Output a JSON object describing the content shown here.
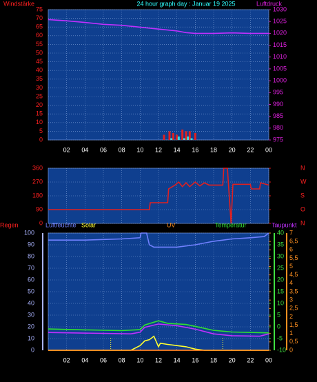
{
  "chart_data": [
    {
      "type": "line",
      "title": "24 hour graph day : Januar 19 2025",
      "ylabel": "Windstärke",
      "y2label": "Luftdruck",
      "xlim": [
        0,
        24
      ],
      "xticks": [
        {
          "value": 2,
          "label": "02"
        },
        {
          "value": 4,
          "label": "04"
        },
        {
          "value": 6,
          "label": "06"
        },
        {
          "value": 8,
          "label": "08"
        },
        10,
        12,
        14,
        16,
        18,
        20,
        22,
        {
          "value": 24,
          "label": "00"
        }
      ],
      "show_xlabels": true,
      "ylim": [
        0,
        75
      ],
      "yticks": [
        0,
        5,
        10,
        15,
        20,
        25,
        30,
        35,
        40,
        45,
        50,
        55,
        60,
        65,
        70,
        75
      ],
      "ycolor": "#ff2020",
      "y2lim": [
        975,
        1030
      ],
      "y2ticks": [
        975,
        980,
        985,
        990,
        995,
        1000,
        1005,
        1010,
        1015,
        1020,
        1025,
        1030
      ],
      "y2color": "#e020e0",
      "grid": true,
      "series": [
        {
          "type": "bar",
          "color": "#e02020",
          "x": [
            12.6,
            13.2,
            13.6,
            14.0,
            14.6,
            15.0,
            15.4,
            16.0
          ],
          "values": [
            3,
            5,
            4,
            3,
            6,
            5,
            5,
            4
          ]
        },
        {
          "type": "bar",
          "color": "#30e0e0",
          "x": [
            13.4,
            14.2,
            14.8,
            15.2,
            15.6
          ],
          "values": [
            1,
            2,
            1,
            2,
            1
          ]
        },
        {
          "type": "line",
          "axis": "y2",
          "color": "#c030ff",
          "x": [
            0,
            2,
            4,
            6,
            8,
            10,
            12,
            14,
            15,
            16,
            18,
            20,
            22,
            24
          ],
          "values": [
            1025.8,
            1025.3,
            1024.6,
            1023.8,
            1023.4,
            1022.6,
            1021.8,
            1021,
            1020.3,
            1020,
            1020,
            1020.2,
            1020,
            1020
          ]
        }
      ]
    },
    {
      "type": "line",
      "xlim": [
        0,
        24
      ],
      "xticks": [
        {
          "value": 2,
          "label": "02"
        },
        {
          "value": 4,
          "label": "04"
        },
        {
          "value": 6,
          "label": "06"
        },
        {
          "value": 8,
          "label": "08"
        },
        10,
        12,
        14,
        16,
        18,
        20,
        22,
        {
          "value": 24,
          "label": "00"
        }
      ],
      "show_xlabels": false,
      "ylim": [
        0,
        360
      ],
      "yticks": [
        0,
        90,
        180,
        270,
        360
      ],
      "ycolor": "#ff2020",
      "y2lim": [
        0,
        360
      ],
      "y2ticks": [
        {
          "value": 0,
          "label": "N"
        },
        {
          "value": 90,
          "label": "O"
        },
        {
          "value": 180,
          "label": "S"
        },
        {
          "value": 270,
          "label": "W"
        },
        {
          "value": 360,
          "label": "N"
        }
      ],
      "y2color": "#ff2020",
      "grid": true,
      "series": [
        {
          "type": "line",
          "color": "#e02020",
          "x": [
            0,
            11,
            11.1,
            13,
            13.1,
            13.8,
            14.2,
            14.6,
            15,
            15.4,
            16,
            16.5,
            17,
            17.5,
            19,
            19.1,
            19.5,
            19.9,
            20.1,
            22,
            22.1,
            23,
            23.1,
            24
          ],
          "values": [
            90,
            90,
            135,
            135,
            225,
            250,
            270,
            240,
            265,
            240,
            270,
            245,
            265,
            250,
            250,
            360,
            360,
            0,
            255,
            255,
            225,
            225,
            265,
            250
          ]
        }
      ]
    },
    {
      "type": "line",
      "xlim": [
        0,
        24
      ],
      "xticks": [
        {
          "value": 2,
          "label": "02"
        },
        {
          "value": 4,
          "label": "04"
        },
        {
          "value": 6,
          "label": "06"
        },
        {
          "value": 8,
          "label": "08"
        },
        10,
        12,
        14,
        16,
        18,
        20,
        22,
        {
          "value": 24,
          "label": "00"
        }
      ],
      "show_xlabels": true,
      "ylim": [
        0,
        100
      ],
      "yticks": [
        0,
        10,
        20,
        30,
        40,
        50,
        60,
        70,
        80,
        90,
        100
      ],
      "ycolor": "#aab4ff",
      "y2lim": [
        -10,
        40
      ],
      "y2ticks": [
        -10,
        -5,
        0,
        5,
        10,
        15,
        20,
        25,
        30,
        35,
        40
      ],
      "y2color": "#40e040",
      "y3lim": [
        0,
        7
      ],
      "y3ticks": [
        0,
        {
          "value": 0.5,
          "label": "0,5"
        },
        1,
        {
          "value": 1.5,
          "label": "1,5"
        },
        2,
        {
          "value": 2.5,
          "label": "2,5"
        },
        3,
        {
          "value": 3.5,
          "label": "3,5"
        },
        4,
        {
          "value": 4.5,
          "label": "4,5"
        },
        5,
        {
          "value": 5.5,
          "label": "5,5"
        },
        6,
        {
          "value": 6.5,
          "label": "6,5"
        },
        7
      ],
      "y3color": "#ff9020",
      "grid": true,
      "markers_x": [
        6.8,
        19
      ],
      "series": [
        {
          "name": "Regen",
          "type": "line",
          "color": "#ff2020",
          "x": [
            0,
            24
          ],
          "values": [
            0,
            0
          ]
        },
        {
          "name": "Luftfeuchte",
          "type": "line",
          "color": "#7080ff",
          "x": [
            0,
            4,
            8,
            10,
            10.1,
            10.7,
            11,
            11.5,
            14,
            16,
            18,
            20,
            22,
            23.5,
            24
          ],
          "values": [
            94,
            94,
            95,
            96,
            100,
            100,
            90,
            88,
            88,
            90,
            93,
            95,
            96,
            97,
            100
          ]
        },
        {
          "name": "Solar",
          "type": "line",
          "color": "#ffff30",
          "x": [
            0,
            9,
            10,
            10.5,
            11,
            11.5,
            12,
            12.2,
            13,
            14,
            15,
            16,
            17,
            24
          ],
          "values": [
            0,
            0,
            4,
            8,
            9,
            12,
            3,
            6,
            5,
            4,
            3,
            1,
            0,
            0
          ]
        },
        {
          "name": "UV",
          "type": "line",
          "axis": "y3",
          "color": "#ff9020",
          "x": [
            0,
            24
          ],
          "values": [
            0,
            0
          ]
        },
        {
          "name": "Temperatur",
          "type": "line",
          "axis": "y2",
          "color": "#30e030",
          "x": [
            0,
            4,
            8,
            10,
            10.5,
            12,
            13,
            15,
            16,
            18,
            20,
            24
          ],
          "values": [
            -0.9,
            -1.3,
            -1.6,
            -1.2,
            0.8,
            2.6,
            1.5,
            1,
            0.2,
            -1.5,
            -2.2,
            -2.6
          ]
        },
        {
          "name": "Taupunkt",
          "type": "line",
          "axis": "y2",
          "color": "#c030ff",
          "x": [
            0,
            6,
            9,
            10,
            10.5,
            12,
            14,
            16,
            18,
            20,
            23,
            24
          ],
          "values": [
            -2.4,
            -2.8,
            -3,
            -2.3,
            -0.2,
            1.2,
            0.5,
            -1,
            -3,
            -3.8,
            -4,
            -3
          ]
        }
      ]
    }
  ]
}
